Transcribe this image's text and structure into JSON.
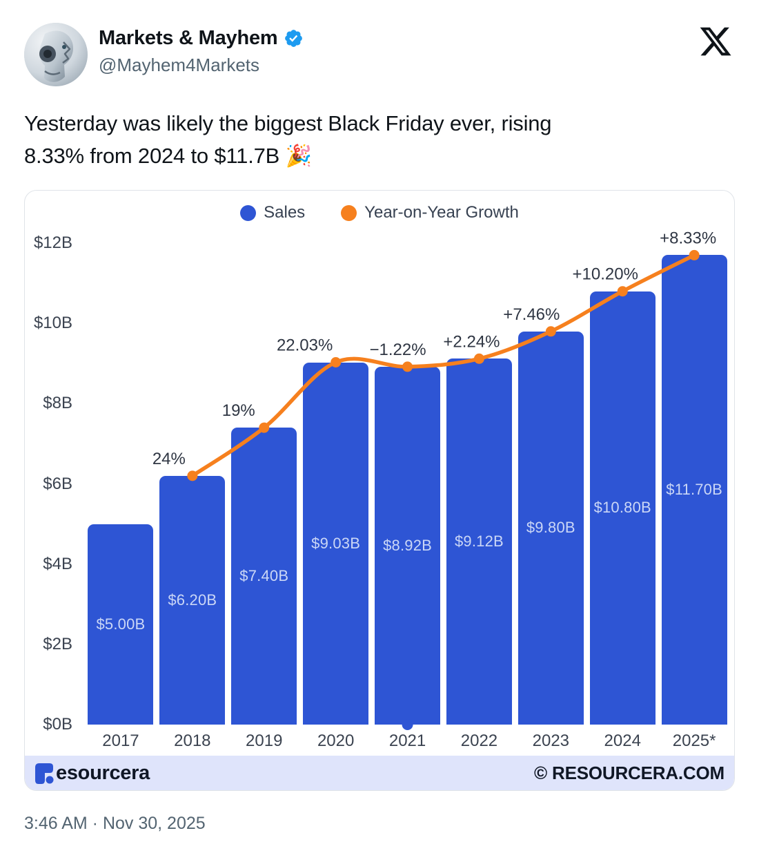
{
  "header": {
    "display_name": "Markets & Mayhem",
    "handle": "@Mayhem4Markets",
    "verified_badge": "verified-badge",
    "verified_color": "#1d9bf0",
    "x_logo": "x-logo",
    "x_logo_color": "#0f1419"
  },
  "tweet": {
    "lines": [
      "Yesterday was likely the biggest Black Friday ever, rising",
      "8.33% from 2024 to $11.7B 🎉"
    ]
  },
  "chart_data": {
    "type": "bar",
    "title": "",
    "categories": [
      "2017",
      "2018",
      "2019",
      "2020",
      "2021",
      "2022",
      "2023",
      "2024",
      "2025*"
    ],
    "series": [
      {
        "name": "Sales",
        "type": "bar",
        "unit": "USD billions",
        "color": "#2e55d4",
        "values": [
          5.0,
          6.2,
          7.4,
          9.03,
          8.92,
          9.12,
          9.8,
          10.8,
          11.7
        ],
        "labels": [
          "$5.00B",
          "$6.20B",
          "$7.40B",
          "$9.03B",
          "$8.92B",
          "$9.12B",
          "$9.80B",
          "$10.80B",
          "$11.70B"
        ]
      },
      {
        "name": "Year-on-Year Growth",
        "type": "line",
        "unit": "percent",
        "color": "#f6801e",
        "categories": [
          "2018",
          "2019",
          "2020",
          "2021",
          "2022",
          "2023",
          "2024",
          "2025*"
        ],
        "values": [
          24,
          19,
          22.03,
          -1.22,
          2.24,
          7.46,
          10.2,
          8.33
        ],
        "labels": [
          "24%",
          "19%",
          "22.03%",
          "−1.22%",
          "+2.24%",
          "+7.46%",
          "+10.20%",
          "+8.33%"
        ]
      }
    ],
    "xlabel": "",
    "ylabel": "",
    "ylim": [
      0,
      12
    ],
    "yticks": {
      "values": [
        0,
        2,
        4,
        6,
        8,
        10,
        12
      ],
      "labels": [
        "$0B",
        "$2B",
        "$4B",
        "$6B",
        "$8B",
        "$10B",
        "$12B"
      ]
    },
    "grid": false,
    "legend": {
      "position": "top",
      "items": [
        "Sales",
        "Year-on-Year Growth"
      ]
    }
  },
  "chart_footer": {
    "brand_text": "esourcera",
    "brand_logo": "resourcera-logo",
    "copyright": "© RESOURCERA.COM",
    "bg_color": "#dfe4fb",
    "logo_color": "#2e55d4"
  },
  "timestamp": "3:46 AM · Nov 30, 2025"
}
